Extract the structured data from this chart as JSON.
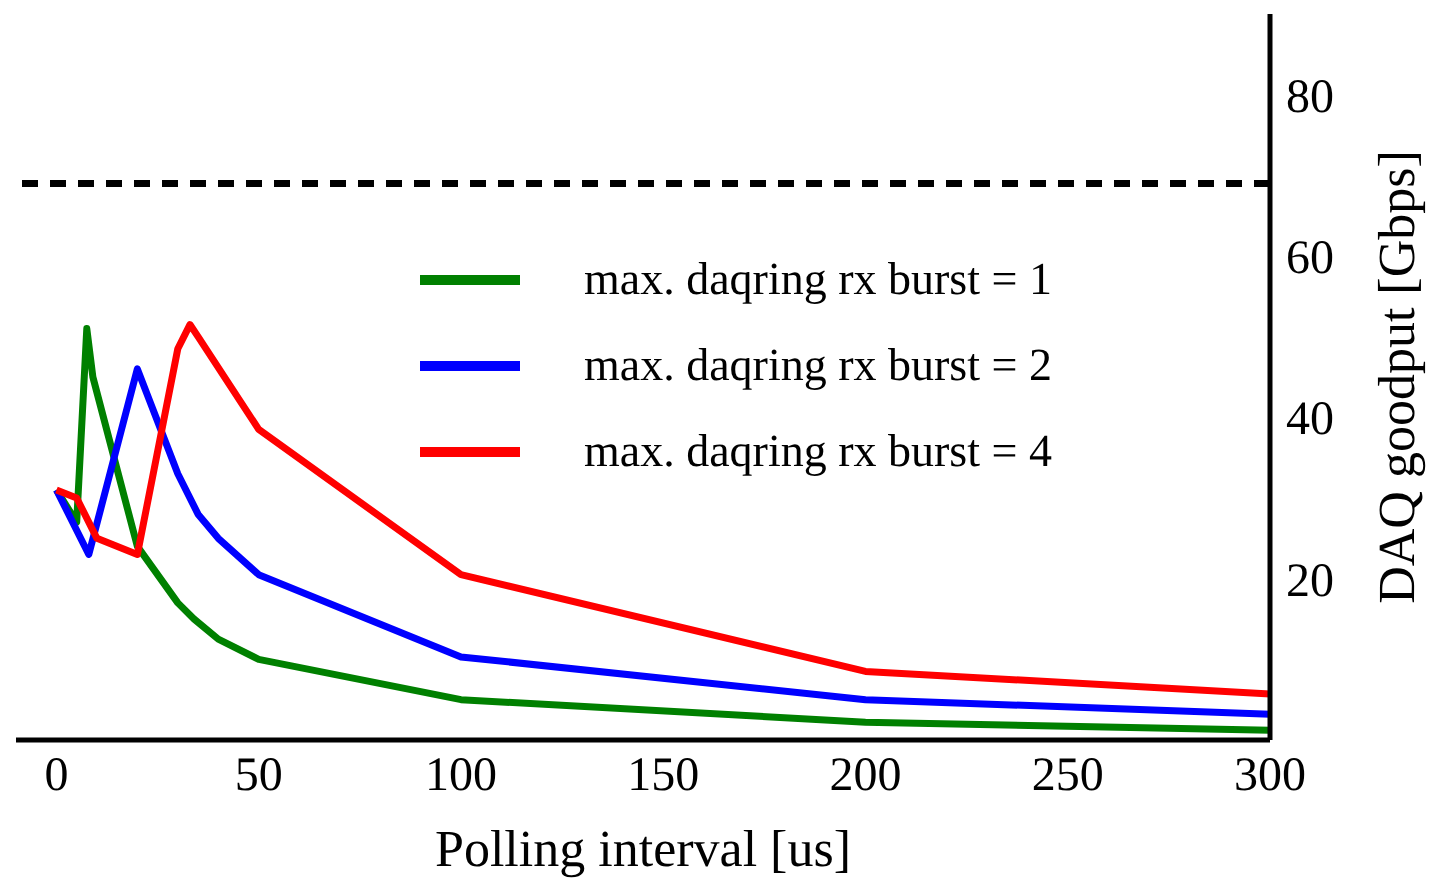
{
  "chart_data": {
    "type": "line",
    "xlabel": "Polling interval [us]",
    "ylabel": "DAQ goodput [Gbps]",
    "xlim": [
      -10,
      300
    ],
    "xticks": [
      0,
      50,
      100,
      150,
      200,
      250,
      300
    ],
    "ylim": [
      0,
      90
    ],
    "yticks": [
      20,
      40,
      60,
      80
    ],
    "legend": "right",
    "marker": "none",
    "line_style": "solid",
    "ref_lines": [
      {
        "axis": "y",
        "value": 69,
        "color": "#000000",
        "line_style": "dashed"
      }
    ],
    "series": [
      {
        "name": "max. daqring rx burst = 1",
        "color": "#008000",
        "x": [
          0,
          5,
          7.5,
          9,
          20,
          30,
          34,
          40,
          50,
          100,
          200,
          300
        ],
        "values": [
          31,
          27,
          51,
          45,
          24,
          17,
          15,
          12.5,
          10,
          5,
          2.2,
          1.2
        ]
      },
      {
        "name": "max. daqring rx burst = 2",
        "color": "#0000ff",
        "x": [
          0,
          8,
          20,
          30,
          35,
          40,
          50,
          100,
          200,
          300
        ],
        "values": [
          31,
          23,
          46,
          33,
          28,
          25,
          20.5,
          10.3,
          5,
          3.2
        ]
      },
      {
        "name": "max. daqring rx burst = 4",
        "color": "#ff0000",
        "x": [
          0,
          5,
          10,
          20,
          30,
          33,
          35,
          50,
          100,
          200,
          300
        ],
        "values": [
          31,
          30,
          25,
          23,
          48.5,
          51.5,
          50,
          38.5,
          20.5,
          8.5,
          5.7
        ]
      }
    ]
  }
}
